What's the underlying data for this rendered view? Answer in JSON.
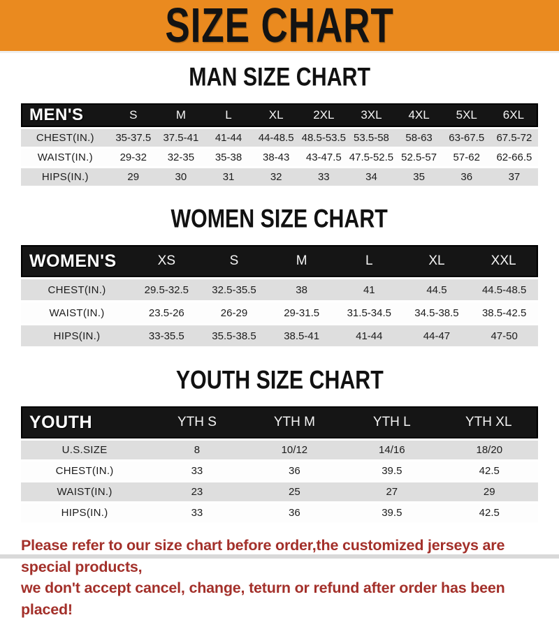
{
  "banner": {
    "title": "SIZE CHART",
    "bg_color": "#EA8A1F",
    "text_color": "#131313"
  },
  "colors": {
    "header_bar": "#151515",
    "row_gray": "#DEDEDE",
    "footer_red": "#A3302A"
  },
  "chart_data": [
    {
      "type": "table",
      "title": "MAN SIZE CHART",
      "label": "MEN'S",
      "columns": [
        "S",
        "M",
        "L",
        "XL",
        "2XL",
        "3XL",
        "4XL",
        "5XL",
        "6XL"
      ],
      "rows": [
        {
          "label": "CHEST(IN.)",
          "values": [
            "35-37.5",
            "37.5-41",
            "41-44",
            "44-48.5",
            "48.5-53.5",
            "53.5-58",
            "58-63",
            "63-67.5",
            "67.5-72"
          ]
        },
        {
          "label": "WAIST(IN.)",
          "values": [
            "29-32",
            "32-35",
            "35-38",
            "38-43",
            "43-47.5",
            "47.5-52.5",
            "52.5-57",
            "57-62",
            "62-66.5"
          ]
        },
        {
          "label": "HIPS(IN.)",
          "values": [
            "29",
            "30",
            "31",
            "32",
            "33",
            "34",
            "35",
            "36",
            "37"
          ]
        }
      ]
    },
    {
      "type": "table",
      "title": "WOMEN SIZE CHART",
      "label": "WOMEN'S",
      "columns": [
        "XS",
        "S",
        "M",
        "L",
        "XL",
        "XXL"
      ],
      "rows": [
        {
          "label": "CHEST(IN.)",
          "values": [
            "29.5-32.5",
            "32.5-35.5",
            "38",
            "41",
            "44.5",
            "44.5-48.5"
          ]
        },
        {
          "label": "WAIST(IN.)",
          "values": [
            "23.5-26",
            "26-29",
            "29-31.5",
            "31.5-34.5",
            "34.5-38.5",
            "38.5-42.5"
          ]
        },
        {
          "label": "HIPS(IN.)",
          "values": [
            "33-35.5",
            "35.5-38.5",
            "38.5-41",
            "41-44",
            "44-47",
            "47-50"
          ]
        }
      ]
    },
    {
      "type": "table",
      "title": "YOUTH SIZE CHART",
      "label": "YOUTH",
      "columns": [
        "YTH S",
        "YTH M",
        "YTH L",
        "YTH XL"
      ],
      "rows": [
        {
          "label": "U.S.SIZE",
          "values": [
            "8",
            "10/12",
            "14/16",
            "18/20"
          ]
        },
        {
          "label": "CHEST(IN.)",
          "values": [
            "33",
            "36",
            "39.5",
            "42.5"
          ]
        },
        {
          "label": "WAIST(IN.)",
          "values": [
            "23",
            "25",
            "27",
            "29"
          ]
        },
        {
          "label": "HIPS(IN.)",
          "values": [
            "33",
            "36",
            "39.5",
            "42.5"
          ]
        }
      ]
    }
  ],
  "footer": {
    "line1": "Please refer to our size chart before order,the customized jerseys are special products,",
    "line2": "we don't accept cancel, change, teturn or refund after order has been placed!"
  }
}
